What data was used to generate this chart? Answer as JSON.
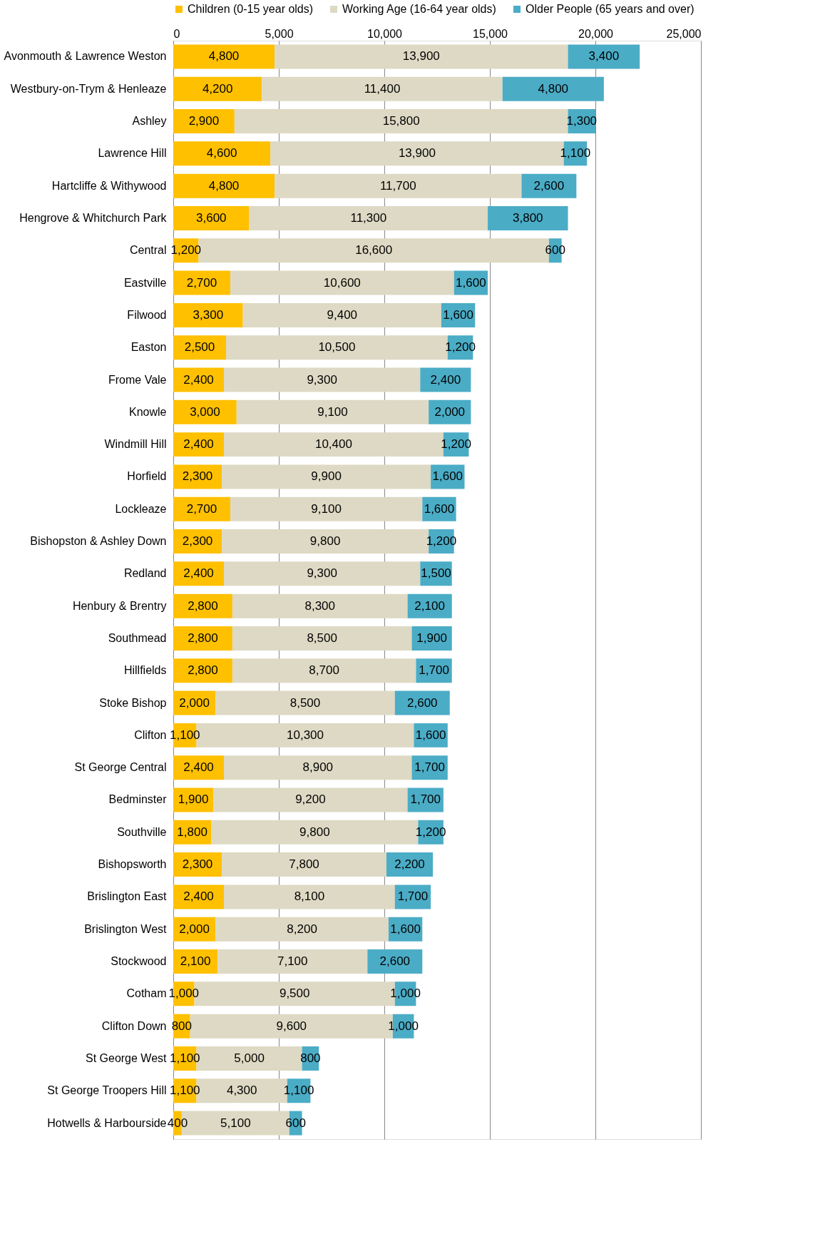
{
  "chart_data": {
    "type": "bar",
    "orientation": "horizontal",
    "stacked": true,
    "grid": "x",
    "legend": "top",
    "categories": [
      "Avonmouth & Lawrence Weston",
      "Westbury-on-Trym & Henleaze",
      "Ashley",
      "Lawrence Hill",
      "Hartcliffe & Withywood",
      "Hengrove & Whitchurch Park",
      "Central",
      "Eastville",
      "Filwood",
      "Easton",
      "Frome Vale",
      "Knowle",
      "Windmill Hill",
      "Horfield",
      "Lockleaze",
      "Bishopston & Ashley Down",
      "Redland",
      "Henbury & Brentry",
      "Southmead",
      "Hillfields",
      "Stoke Bishop",
      "Clifton",
      "St George Central",
      "Bedminster",
      "Southville",
      "Bishopsworth",
      "Brislington East",
      "Brislington West",
      "Stockwood",
      "Cotham",
      "Clifton Down",
      "St George West",
      "St George Troopers Hill",
      "Hotwells & Harbourside"
    ],
    "series": [
      {
        "name": "Children (0-15 year olds)",
        "color": "#ffc000",
        "values": [
          4800,
          4200,
          2900,
          4600,
          4800,
          3600,
          1200,
          2700,
          3300,
          2500,
          2400,
          3000,
          2400,
          2300,
          2700,
          2300,
          2400,
          2800,
          2800,
          2800,
          2000,
          1100,
          2400,
          1900,
          1800,
          2300,
          2400,
          2000,
          2100,
          1000,
          800,
          1100,
          1100,
          400
        ],
        "value_labels": [
          "4,800",
          "4,200",
          "2,900",
          "4,600",
          "4,800",
          "3,600",
          "1,200",
          "2,700",
          "3,300",
          "2,500",
          "2,400",
          "3,000",
          "2,400",
          "2,300",
          "2,700",
          "2,300",
          "2,400",
          "2,800",
          "2,800",
          "2,800",
          "2,000",
          "1,100",
          "2,400",
          "1,900",
          "1,800",
          "2,300",
          "2,400",
          "2,000",
          "2,100",
          "1,000",
          "800",
          "1,100",
          "1,100",
          "400"
        ]
      },
      {
        "name": "Working Age (16-64 year olds)",
        "color": "#ddd9c4",
        "values": [
          13900,
          11400,
          15800,
          13900,
          11700,
          11300,
          16600,
          10600,
          9400,
          10500,
          9300,
          9100,
          10400,
          9900,
          9100,
          9800,
          9300,
          8300,
          8500,
          8700,
          8500,
          10300,
          8900,
          9200,
          9800,
          7800,
          8100,
          8200,
          7100,
          9500,
          9600,
          5000,
          4300,
          5100
        ],
        "value_labels": [
          "13,900",
          "11,400",
          "15,800",
          "13,900",
          "11,700",
          "11,300",
          "16,600",
          "10,600",
          "9,400",
          "10,500",
          "9,300",
          "9,100",
          "10,400",
          "9,900",
          "9,100",
          "9,800",
          "9,300",
          "8,300",
          "8,500",
          "8,700",
          "8,500",
          "10,300",
          "8,900",
          "9,200",
          "9,800",
          "7,800",
          "8,100",
          "8,200",
          "7,100",
          "9,500",
          "9,600",
          "5,000",
          "4,300",
          "5,100"
        ]
      },
      {
        "name": "Older People (65 years and over)",
        "color": "#4bacc6",
        "values": [
          3400,
          4800,
          1300,
          1100,
          2600,
          3800,
          600,
          1600,
          1600,
          1200,
          2400,
          2000,
          1200,
          1600,
          1600,
          1200,
          1500,
          2100,
          1900,
          1700,
          2600,
          1600,
          1700,
          1700,
          1200,
          2200,
          1700,
          1600,
          2600,
          1000,
          1000,
          800,
          1100,
          600
        ],
        "value_labels": [
          "3,400",
          "4,800",
          "1,300",
          "1,100",
          "2,600",
          "3,800",
          "600",
          "1,600",
          "1,600",
          "1,200",
          "2,400",
          "2,000",
          "1,200",
          "1,600",
          "1,600",
          "1,200",
          "1,500",
          "2,100",
          "1,900",
          "1,700",
          "2,600",
          "1,600",
          "1,700",
          "1,700",
          "1,200",
          "2,200",
          "1,700",
          "1,600",
          "2,600",
          "1,000",
          "1,000",
          "800",
          "1,100",
          "600"
        ]
      }
    ],
    "xlim": [
      0,
      25000
    ],
    "xticks": [
      0,
      {
        "value": 5000,
        "label": "5,000"
      },
      {
        "value": 10000,
        "label": "10,000"
      },
      {
        "value": 15000,
        "label": "15,000"
      },
      {
        "value": 20000,
        "label": "20,000"
      },
      {
        "value": 25000,
        "label": "25,000"
      }
    ]
  }
}
